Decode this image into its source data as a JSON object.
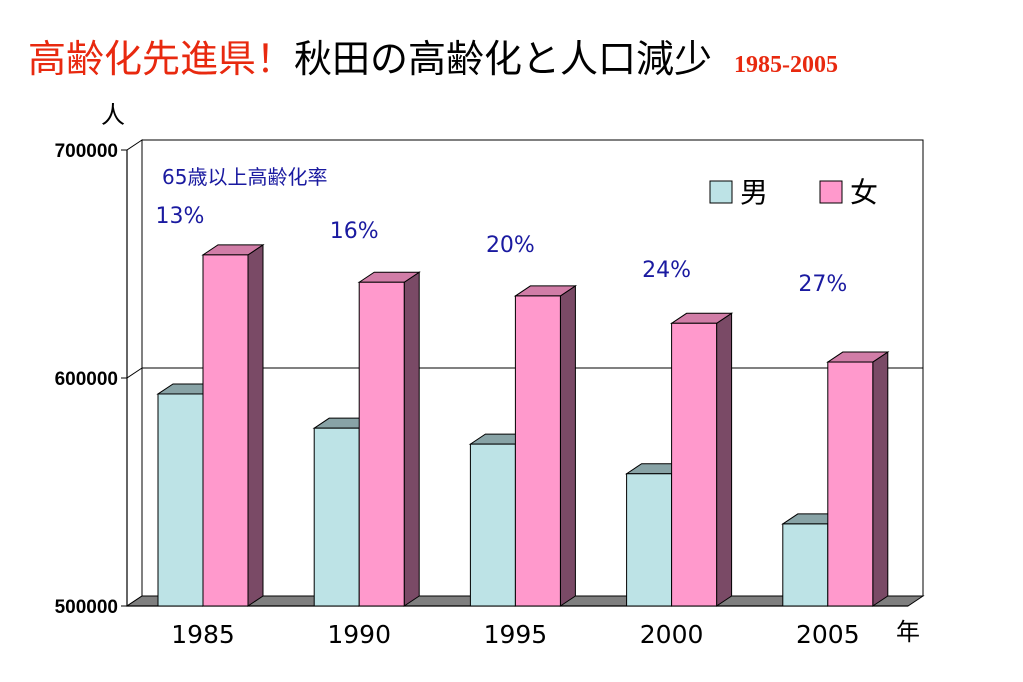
{
  "title": {
    "part1": "高齢化先進県！",
    "part2": "秋田の高齢化と人口減少",
    "range": "1985-2005"
  },
  "colors": {
    "male": "#bde3e6",
    "female": "#ff99cc",
    "female_side": "#7a4a66",
    "male_side": "#6f8f90",
    "floor": "#7f7f7f",
    "rate_text": "#1a1aa0",
    "title_red": "#e8290f"
  },
  "chart_data": {
    "type": "bar",
    "ylabel": "人",
    "xlabel": "年",
    "categories": [
      "1985",
      "1990",
      "1995",
      "2000",
      "2005"
    ],
    "ylim": [
      500000,
      700000
    ],
    "yticks": [
      "500000",
      "600000",
      "700000"
    ],
    "grid": true,
    "legend_position": "top-right",
    "series": [
      {
        "name": "男",
        "values": [
          593000,
          578000,
          571000,
          558000,
          536000
        ]
      },
      {
        "name": "女",
        "values": [
          654000,
          642000,
          636000,
          624000,
          607000
        ]
      }
    ],
    "annotation_label": "65歳以上高齢化率",
    "rate_labels": [
      "13%",
      "16%",
      "20%",
      "24%",
      "27%"
    ]
  }
}
